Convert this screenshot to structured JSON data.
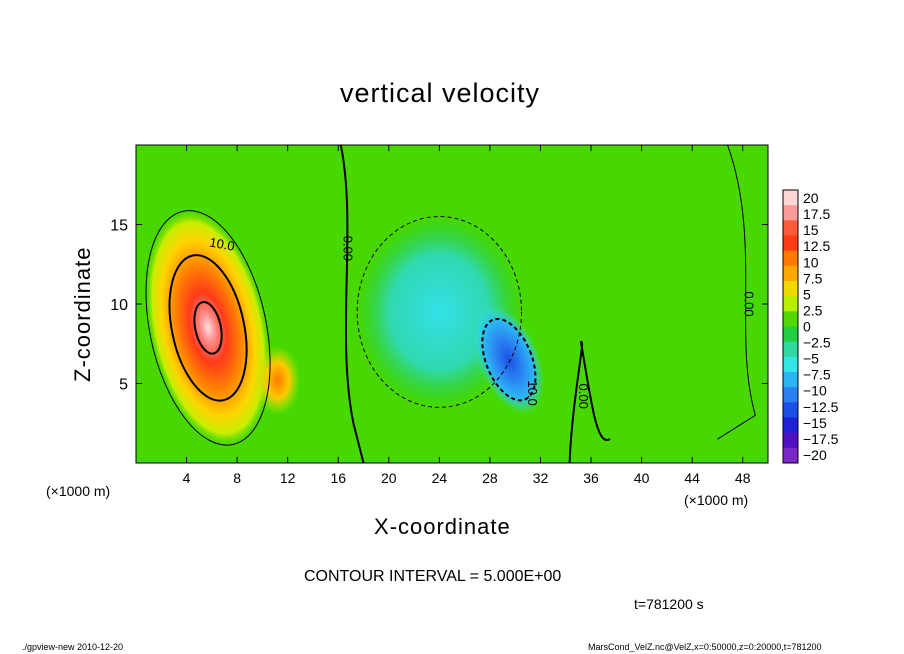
{
  "title": "vertical velocity",
  "xlabel": "X-coordinate",
  "ylabel": "Z-coordinate",
  "x_unit_left": "(×1000 m)",
  "x_unit_right": "(×1000 m)",
  "contour_interval": "CONTOUR INTERVAL = 5.000E+00",
  "time_label": "t=781200 s",
  "footer_left": "./gpview-new  2010-12-20",
  "footer_right": "MarsCond_VelZ.nc@VelZ,x=0:50000,z=0:20000,t=781200",
  "chart_data": {
    "type": "heatmap",
    "title": "vertical velocity",
    "xlabel": "X-coordinate",
    "ylabel": "Z-coordinate",
    "xlim": [
      0,
      50
    ],
    "ylim": [
      0,
      20
    ],
    "x_ticks": [
      4,
      8,
      12,
      16,
      20,
      24,
      28,
      32,
      36,
      40,
      44,
      48
    ],
    "y_ticks": [
      5,
      10,
      15
    ],
    "contour_labels": [
      {
        "text": "10.0",
        "x": 6.8,
        "y": 13.7,
        "rotate": 10
      },
      {
        "text": "0.00",
        "x": 16.7,
        "y": 13.5,
        "rotate": 90
      },
      {
        "text": "10.0",
        "x": 31.3,
        "y": 4.4,
        "rotate": 90
      },
      {
        "text": "0.00",
        "x": 35.3,
        "y": 4.2,
        "rotate": 90
      },
      {
        "text": "0.00",
        "x": 48.4,
        "y": 10.0,
        "rotate": 90
      }
    ],
    "colorbar": {
      "labels": [
        "20",
        "17.5",
        "15",
        "12.5",
        "10",
        "7.5",
        "5",
        "2.5",
        "0",
        "−2.5",
        "−5",
        "−7.5",
        "−10",
        "−12.5",
        "−15",
        "−17.5",
        "−20"
      ],
      "values": [
        20,
        17.5,
        15,
        12.5,
        10,
        7.5,
        5,
        2.5,
        0,
        -2.5,
        -5,
        -7.5,
        -10,
        -12.5,
        -15,
        -17.5,
        -20
      ],
      "colors": [
        "#ffd6d6",
        "#ff9a9a",
        "#ff5a3a",
        "#ff3c14",
        "#ff7a00",
        "#ffa800",
        "#f0d800",
        "#b8ee00",
        "#50d800",
        "#20d040",
        "#30d9a0",
        "#33e5e5",
        "#2cb5f5",
        "#2a80f0",
        "#1a50e6",
        "#2020d8",
        "#5010c0",
        "#7a28c8"
      ]
    },
    "features": [
      {
        "kind": "updraft",
        "cx": 5.7,
        "cy": 8.5,
        "rx": 4.6,
        "ry": 7.5,
        "peak": 19
      },
      {
        "kind": "updraft",
        "cx": 11.2,
        "cy": 5.2,
        "rx": 1.8,
        "ry": 2.2,
        "peak": 11
      },
      {
        "kind": "downdraft",
        "cx": 24,
        "cy": 9.5,
        "rx": 6.5,
        "ry": 6,
        "peak": -6
      },
      {
        "kind": "downdraft",
        "cx": 29.5,
        "cy": 6.5,
        "rx": 2.4,
        "ry": 3.6,
        "peak": -13
      }
    ]
  }
}
